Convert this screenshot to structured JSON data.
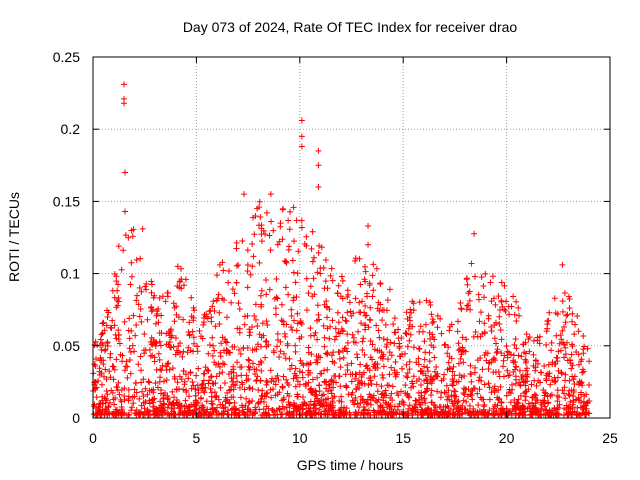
{
  "chart_data": {
    "type": "scatter",
    "title": "Day 073 of 2024, Rate Of TEC Index for receiver drao",
    "xlabel": "GPS time / hours",
    "ylabel": "ROTI / TECUs",
    "xlim": [
      0,
      25
    ],
    "ylim": [
      0,
      0.25
    ],
    "xticks": [
      0,
      5,
      10,
      15,
      20,
      25
    ],
    "yticks": [
      0,
      0.05,
      0.1,
      0.15,
      0.2,
      0.25
    ],
    "xtick_labels": [
      "0",
      "5",
      "10",
      "15",
      "20",
      "25"
    ],
    "ytick_labels": [
      "0",
      "0.05",
      "0.1",
      "0.15",
      "0.2",
      "0.25"
    ],
    "grid": true,
    "marker": "+",
    "color": "#ff0000",
    "series": [
      {
        "name": "ROTI",
        "note": "dense cloud of several thousand points between 0 and 24 h; representative peaks listed",
        "peaks": [
          {
            "x": 1.5,
            "y": 0.231
          },
          {
            "x": 1.5,
            "y": 0.221
          },
          {
            "x": 1.5,
            "y": 0.218
          },
          {
            "x": 1.55,
            "y": 0.17
          },
          {
            "x": 1.55,
            "y": 0.143
          },
          {
            "x": 2.4,
            "y": 0.131
          },
          {
            "x": 4.1,
            "y": 0.105
          },
          {
            "x": 7.3,
            "y": 0.155
          },
          {
            "x": 8.6,
            "y": 0.155
          },
          {
            "x": 10.1,
            "y": 0.206
          },
          {
            "x": 10.1,
            "y": 0.195
          },
          {
            "x": 10.1,
            "y": 0.188
          },
          {
            "x": 10.9,
            "y": 0.185
          },
          {
            "x": 10.9,
            "y": 0.175
          },
          {
            "x": 10.9,
            "y": 0.16
          },
          {
            "x": 13.3,
            "y": 0.133
          },
          {
            "x": 13.3,
            "y": 0.12
          },
          {
            "x": 18.3,
            "y": 0.107
          },
          {
            "x": 22.7,
            "y": 0.106
          }
        ]
      }
    ]
  }
}
